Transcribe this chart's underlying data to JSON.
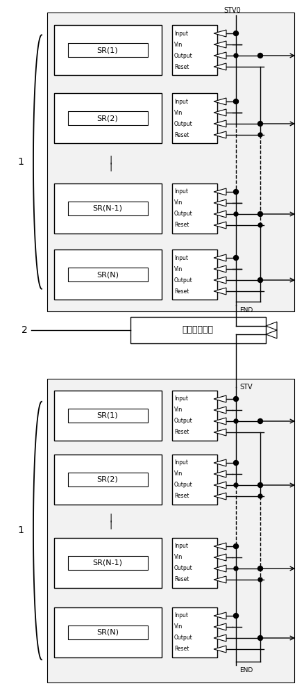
{
  "fig_w": 4.39,
  "fig_h": 10.0,
  "dpi": 100,
  "pw": 439,
  "ph": 1000,
  "bg": "white",
  "lc": "black",
  "voltage_label": "电压保持单元",
  "top_sr_labels": [
    "SR(1)",
    "SR(2)",
    "SR(N-1)",
    "SR(N)"
  ],
  "bot_sr_labels": [
    "SR(1)",
    "SR(2)",
    "SR(N-1)",
    "SR(N)"
  ],
  "port_names": [
    "Input",
    "Vin",
    "Output",
    "Reset"
  ]
}
